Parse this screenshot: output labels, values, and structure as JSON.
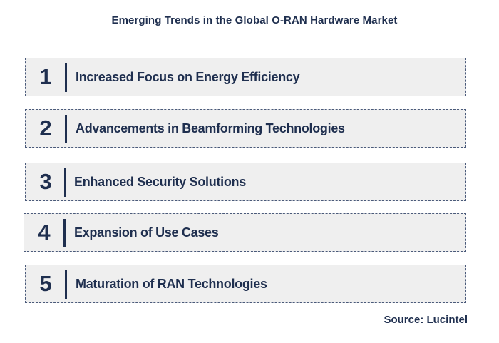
{
  "title": "Emerging Trends in the Global O-RAN Hardware Market",
  "trends": [
    {
      "number": "1",
      "label": "Increased Focus on Energy Efficiency"
    },
    {
      "number": "2",
      "label": "Advancements in Beamforming Technologies"
    },
    {
      "number": "3",
      "label": "Enhanced Security Solutions"
    },
    {
      "number": "4",
      "label": "Expansion of Use Cases"
    },
    {
      "number": "5",
      "label": "Maturation of RAN  Technologies"
    }
  ],
  "source": "Source: Lucintel",
  "colors": {
    "text": "#1f2f4f",
    "box_fill": "#efefef",
    "box_border": "#4a5a7a"
  }
}
